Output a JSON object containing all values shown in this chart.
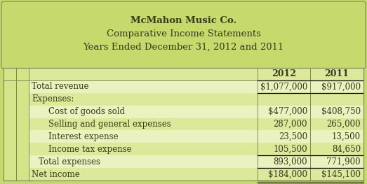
{
  "title_lines": [
    "McMahon Music Co.",
    "Comparative Income Statements",
    "Years Ended December 31, 2012 and 2011"
  ],
  "col_headers": [
    "2012",
    "2011"
  ],
  "rows": [
    {
      "label": "Total revenue",
      "indent": 0,
      "val2012": "$1,077,000",
      "val2011": "$917,000",
      "top_border": true,
      "bottom_border": true,
      "double_bottom": false
    },
    {
      "label": "Expenses:",
      "indent": 0,
      "val2012": "",
      "val2011": "",
      "top_border": false,
      "bottom_border": false,
      "double_bottom": false
    },
    {
      "label": "Cost of goods sold",
      "indent": 2,
      "val2012": "$477,000",
      "val2011": "$408,750",
      "top_border": false,
      "bottom_border": false,
      "double_bottom": false
    },
    {
      "label": "Selling and general expenses",
      "indent": 2,
      "val2012": "287,000",
      "val2011": "265,000",
      "top_border": false,
      "bottom_border": false,
      "double_bottom": false
    },
    {
      "label": "Interest expense",
      "indent": 2,
      "val2012": "23,500",
      "val2011": "13,500",
      "top_border": false,
      "bottom_border": false,
      "double_bottom": false
    },
    {
      "label": "Income tax expense",
      "indent": 2,
      "val2012": "105,500",
      "val2011": "84,650",
      "top_border": false,
      "bottom_border": false,
      "double_bottom": false
    },
    {
      "label": "Total expenses",
      "indent": 1,
      "val2012": "893,000",
      "val2011": "771,900",
      "top_border": true,
      "bottom_border": true,
      "double_bottom": false
    },
    {
      "label": "Net income",
      "indent": 0,
      "val2012": "$184,000",
      "val2011": "$145,100",
      "top_border": false,
      "bottom_border": true,
      "double_bottom": true
    }
  ],
  "title_bg": "#c5d96d",
  "outer_bg": "#c5d96d",
  "row_bg_even": "#dce89a",
  "row_bg_odd": "#eaf2c0",
  "stripe_bg": "#d4e488",
  "border_color": "#7a8a50",
  "text_color": "#3a3a1a",
  "title_font_size": 9.5,
  "cell_font_size": 8.5,
  "header_font_size": 9.0
}
